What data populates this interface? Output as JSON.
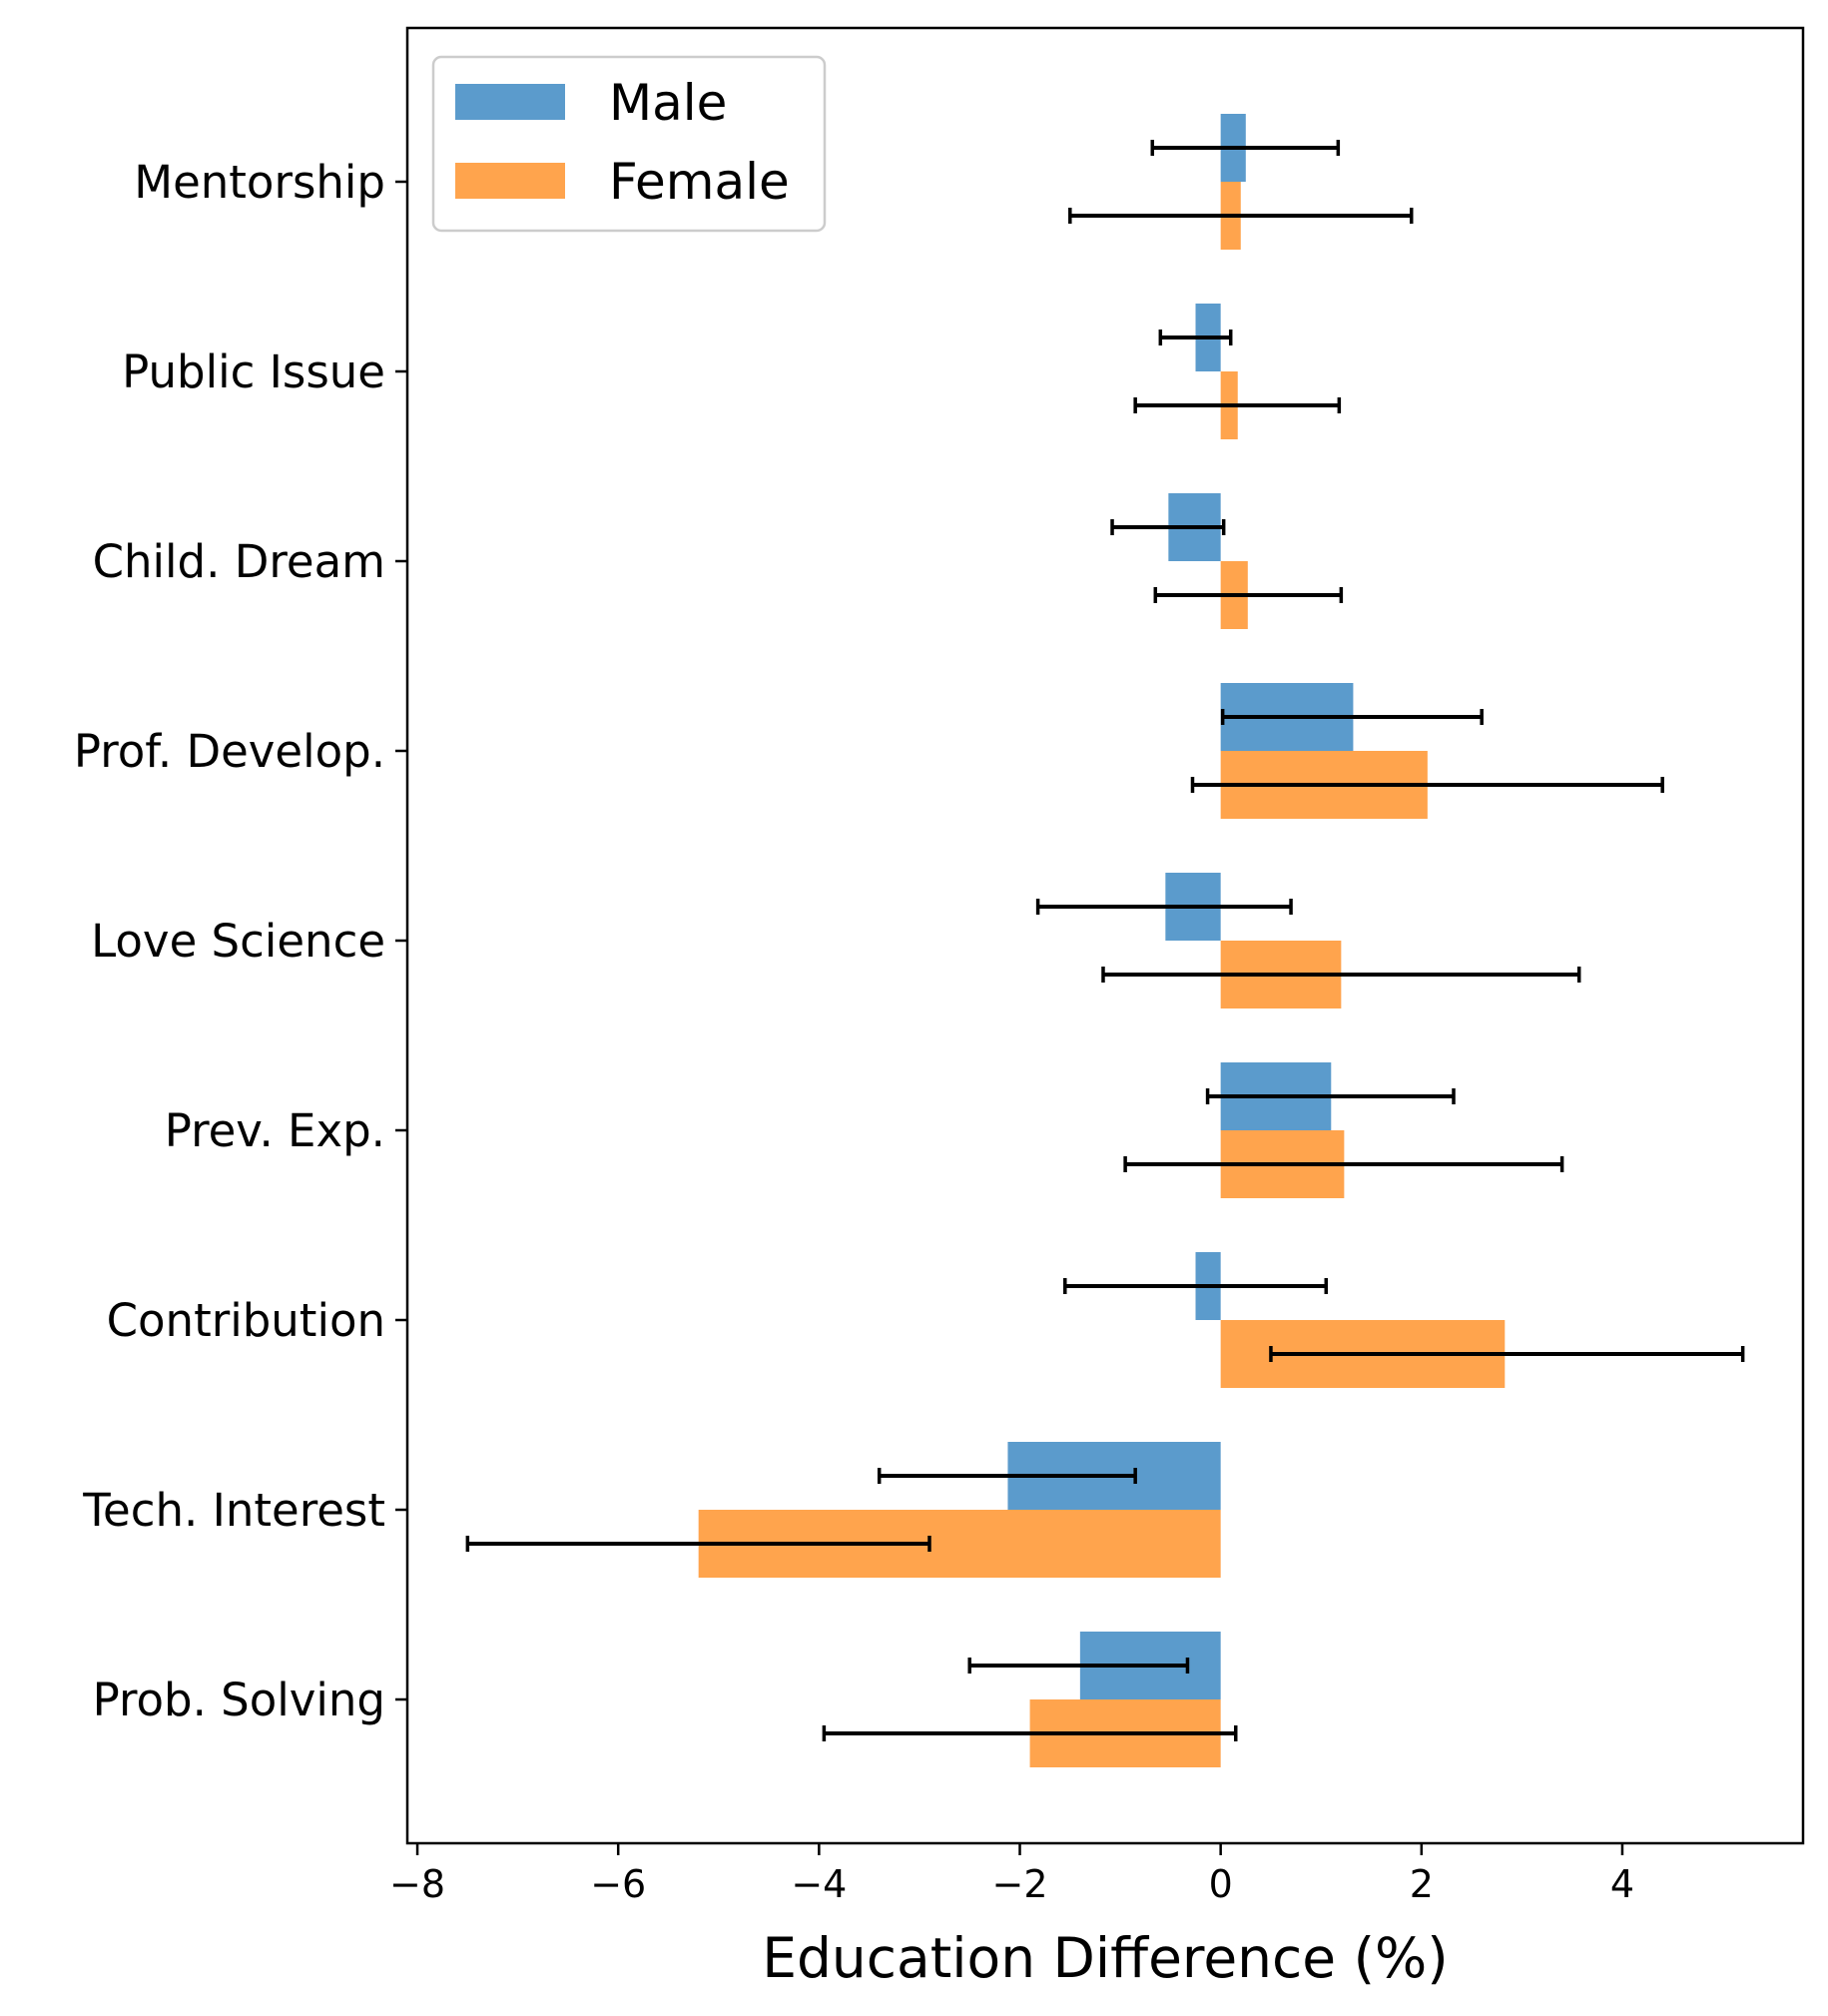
{
  "chart_data": {
    "type": "bar",
    "orientation": "horizontal",
    "xlabel": "Education Difference (%)",
    "ylabel": "",
    "xlim": [
      -8.1,
      5.8
    ],
    "xticks": [
      {
        "value": -8,
        "label": "−8"
      },
      {
        "value": -6,
        "label": "−6"
      },
      {
        "value": -4,
        "label": "−4"
      },
      {
        "value": -2,
        "label": "−2"
      },
      {
        "value": 0,
        "label": "0"
      },
      {
        "value": 2,
        "label": "2"
      },
      {
        "value": 4,
        "label": "4"
      }
    ],
    "grid": false,
    "legend_position": "top-left",
    "categories": [
      "Mentorship",
      "Public Issue",
      "Child. Dream",
      "Prof. Develop.",
      "Love Science",
      "Prev. Exp.",
      "Contribution",
      "Tech. Interest",
      "Prob. Solving"
    ],
    "series": [
      {
        "name": "Male",
        "color": "#5b9bcc",
        "values": [
          0.25,
          -0.25,
          -0.52,
          1.32,
          -0.55,
          1.1,
          -0.25,
          -2.12,
          -1.4
        ],
        "err_low": [
          -0.68,
          -0.6,
          -1.08,
          0.02,
          -1.82,
          -0.13,
          -1.55,
          -3.4,
          -2.5
        ],
        "err_high": [
          1.17,
          0.1,
          0.03,
          2.6,
          0.7,
          2.32,
          1.05,
          -0.85,
          -0.33
        ]
      },
      {
        "name": "Female",
        "color": "#ffa44d",
        "values": [
          0.2,
          0.17,
          0.27,
          2.06,
          1.2,
          1.23,
          2.83,
          -5.2,
          -1.9
        ],
        "err_low": [
          -1.5,
          -0.85,
          -0.65,
          -0.28,
          -1.17,
          -0.95,
          0.5,
          -7.5,
          -3.95
        ],
        "err_high": [
          1.9,
          1.18,
          1.2,
          4.4,
          3.57,
          3.4,
          5.2,
          -2.9,
          0.15
        ]
      }
    ]
  }
}
